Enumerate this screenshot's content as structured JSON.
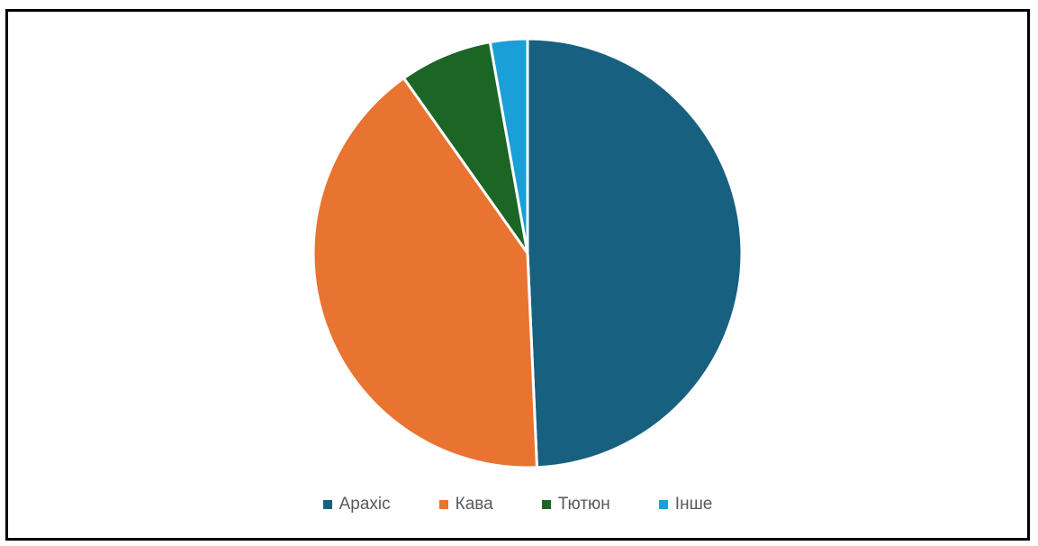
{
  "chart_data": {
    "type": "pie",
    "title": "",
    "start_angle_deg": 0,
    "direction": "clockwise",
    "legend_position": "bottom",
    "slices": [
      {
        "label": "Арахіс",
        "value": 49.3,
        "color": "#17607f"
      },
      {
        "label": "Кава",
        "value": 40.9,
        "color": "#e97331"
      },
      {
        "label": "Тютюн",
        "value": 7.0,
        "color": "#1b6625"
      },
      {
        "label": "Інше",
        "value": 2.8,
        "color": "#1a9fd8"
      }
    ]
  }
}
